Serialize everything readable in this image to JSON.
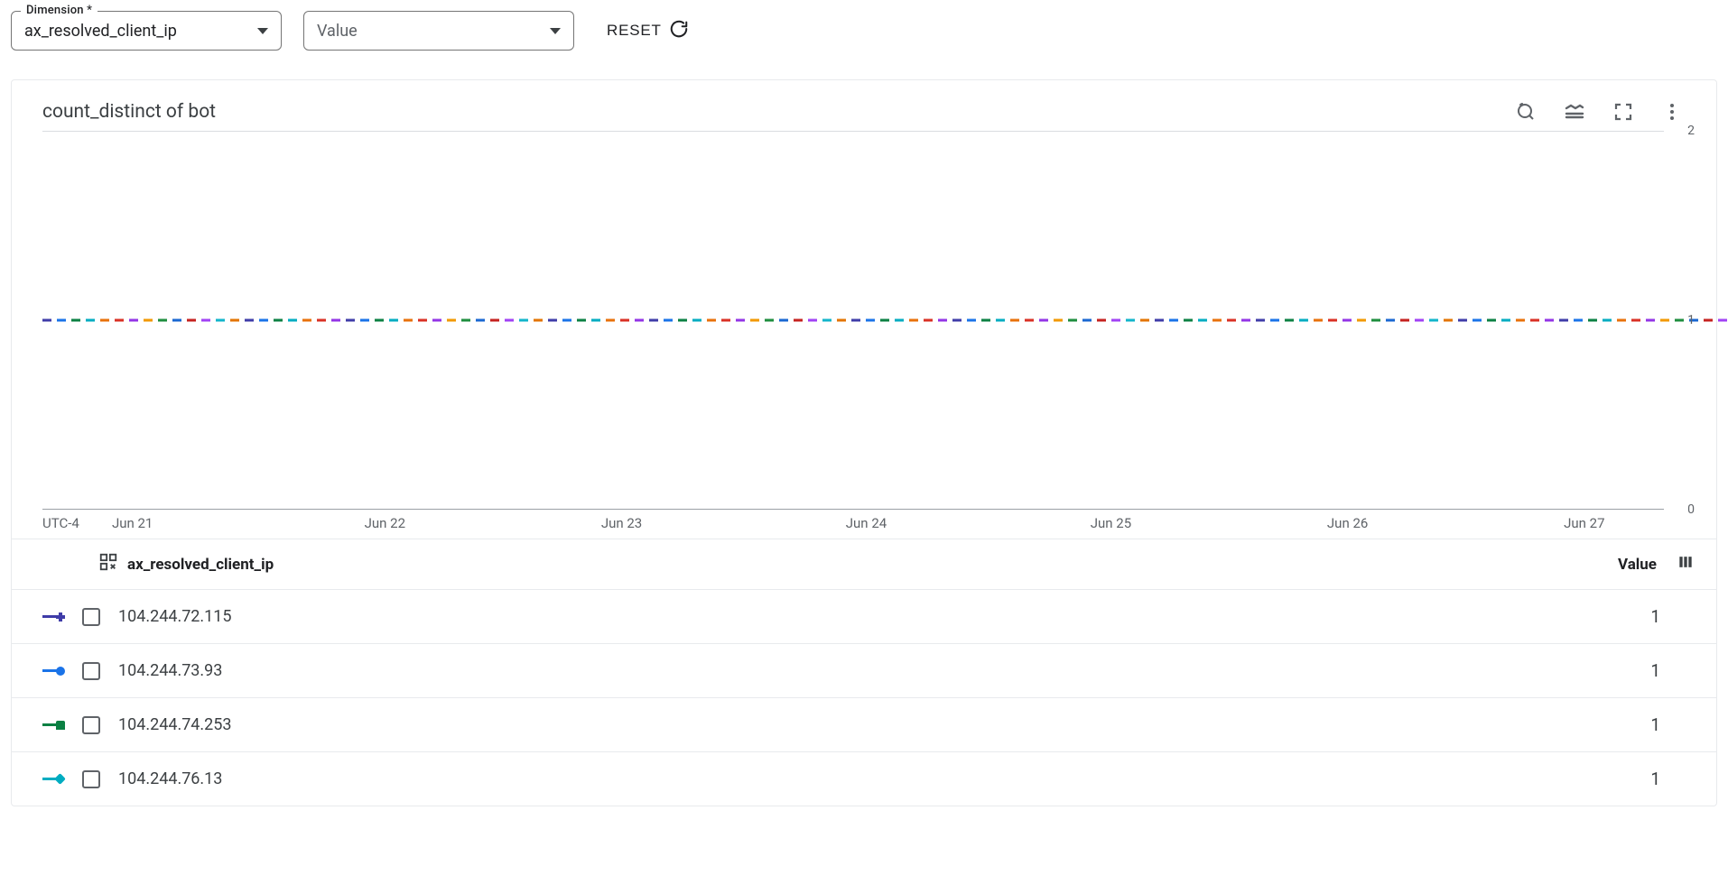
{
  "filters": {
    "dimension": {
      "label": "Dimension *",
      "value": "ax_resolved_client_ip"
    },
    "value_select": {
      "placeholder": "Value"
    },
    "reset_label": "RESET"
  },
  "chart": {
    "title": "count_distinct of bot",
    "type": "line",
    "y_axis": {
      "ticks": [
        {
          "value": 2,
          "pos_pct": 0
        },
        {
          "value": 1,
          "pos_pct": 50
        },
        {
          "value": 0,
          "pos_pct": 100
        }
      ],
      "ylim": [
        0,
        2
      ]
    },
    "x_axis": {
      "timezone_label": "UTC-4",
      "ticks": [
        {
          "label": "Jun 21",
          "pos_pct": 2
        },
        {
          "label": "Jun 22",
          "pos_pct": 18
        },
        {
          "label": "Jun 23",
          "pos_pct": 33
        },
        {
          "label": "Jun 24",
          "pos_pct": 48.5
        },
        {
          "label": "Jun 25",
          "pos_pct": 64
        },
        {
          "label": "Jun 26",
          "pos_pct": 79
        },
        {
          "label": "Jun 27",
          "pos_pct": 94
        }
      ]
    },
    "series_flat_value": 1,
    "dash_palette": [
      "#3f3ca8",
      "#1a73e8",
      "#0b8043",
      "#00acc1",
      "#e8710a",
      "#d93025",
      "#9334e6",
      "#f29900",
      "#1e8e3e",
      "#1967d2",
      "#c5221f",
      "#a142f4",
      "#12b5cb",
      "#e37400",
      "#3f3ca8",
      "#1a73e8",
      "#0b8043",
      "#00acc1",
      "#e8710a",
      "#d93025",
      "#9334e6"
    ],
    "grid_color": "#dadce0",
    "axis_color": "#9aa0a6",
    "background_color": "#ffffff"
  },
  "legend": {
    "group_by_label": "ax_resolved_client_ip",
    "value_header": "Value",
    "rows": [
      {
        "color": "#3f3ca8",
        "marker": "plus",
        "label": "104.244.72.115",
        "value": 1
      },
      {
        "color": "#1a73e8",
        "marker": "circle",
        "label": "104.244.73.93",
        "value": 1
      },
      {
        "color": "#0b8043",
        "marker": "square",
        "label": "104.244.74.253",
        "value": 1
      },
      {
        "color": "#00acc1",
        "marker": "diamond",
        "label": "104.244.76.13",
        "value": 1
      }
    ]
  }
}
